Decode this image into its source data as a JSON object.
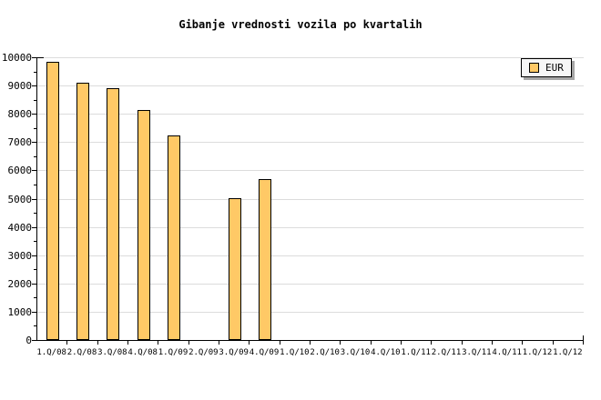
{
  "title": "Gibanje vrednosti vozila po kvartalih",
  "legend": {
    "label": "EUR",
    "position": "top-right"
  },
  "colors": {
    "background": "#FFFFFF",
    "bar_fill": "#FFC966",
    "bar_border": "#000000",
    "grid": "#DCDCDC",
    "axis": "#000000",
    "text": "#000000",
    "legend_bg": "#F6F6F6",
    "legend_border": "#000000",
    "legend_shadow": "#A6A6A6"
  },
  "chart_data": {
    "type": "bar",
    "title": "Gibanje vrednosti vozila po kvartalih",
    "xlabel": "",
    "ylabel": "",
    "categories": [
      "1.Q/08",
      "2.Q/08",
      "3.Q/08",
      "4.Q/08",
      "1.Q/09",
      "2.Q/09",
      "3.Q/09",
      "4.Q/09",
      "1.Q/10",
      "2.Q/10",
      "3.Q/10",
      "4.Q/10",
      "1.Q/11",
      "2.Q/11",
      "3.Q/11",
      "4.Q/11",
      "1.Q/12",
      "1.Q/12"
    ],
    "series": [
      {
        "name": "EUR",
        "values": [
          9840,
          9110,
          8910,
          8130,
          7250,
          null,
          5030,
          5700,
          null,
          null,
          null,
          null,
          null,
          null,
          null,
          null,
          null,
          null
        ]
      }
    ],
    "ylim": [
      0,
      10000
    ],
    "ytick_major": 1000,
    "ytick_minor": 500,
    "y_tick_labels": [
      "0",
      "1000",
      "2000",
      "3000",
      "4000",
      "5000",
      "6000",
      "7000",
      "8000",
      "9000",
      "10000"
    ],
    "grid": "horizontal-major",
    "legend_entries": [
      "EUR"
    ],
    "legend_position": "top-right"
  }
}
